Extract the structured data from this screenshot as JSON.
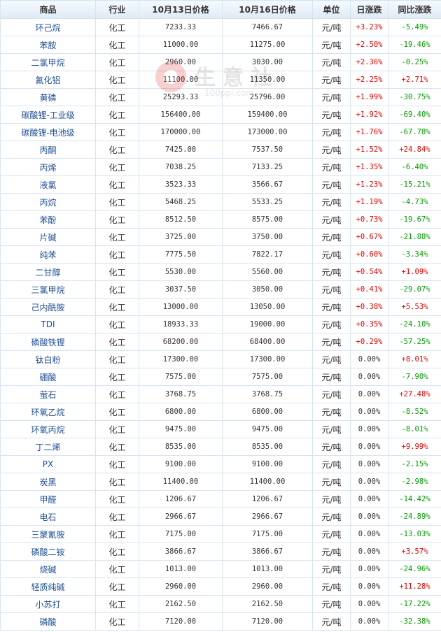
{
  "header": {
    "product": "商品",
    "industry": "行业",
    "price1": "10月13日价格",
    "price2": "10月16日价格",
    "unit": "单位",
    "daily": "日涨跌",
    "yoy": "同比涨跌"
  },
  "watermark": {
    "text": "生意社",
    "url": "100ppi.com"
  },
  "colors": {
    "up": "#e10000",
    "down": "#009a00",
    "link": "#1f4e96",
    "border": "#d6e4f2"
  },
  "rows": [
    {
      "name": "环己烷",
      "industry": "化工",
      "p1": "7233.33",
      "p2": "7466.67",
      "unit": "元/吨",
      "daily": "+3.23%",
      "yoy": "-5.49%"
    },
    {
      "name": "苯胺",
      "industry": "化工",
      "p1": "11000.00",
      "p2": "11275.00",
      "unit": "元/吨",
      "daily": "+2.50%",
      "yoy": "-19.46%"
    },
    {
      "name": "二氯甲烷",
      "industry": "化工",
      "p1": "2960.00",
      "p2": "3030.00",
      "unit": "元/吨",
      "daily": "+2.36%",
      "yoy": "-0.25%"
    },
    {
      "name": "氟化铝",
      "industry": "化工",
      "p1": "11100.00",
      "p2": "11350.00",
      "unit": "元/吨",
      "daily": "+2.25%",
      "yoy": "+2.71%"
    },
    {
      "name": "黄磷",
      "industry": "化工",
      "p1": "25293.33",
      "p2": "25796.00",
      "unit": "元/吨",
      "daily": "+1.99%",
      "yoy": "-30.75%"
    },
    {
      "name": "碳酸锂-工业级",
      "industry": "化工",
      "p1": "156400.00",
      "p2": "159400.00",
      "unit": "元/吨",
      "daily": "+1.92%",
      "yoy": "-69.40%"
    },
    {
      "name": "碳酸锂-电池级",
      "industry": "化工",
      "p1": "170000.00",
      "p2": "173000.00",
      "unit": "元/吨",
      "daily": "+1.76%",
      "yoy": "-67.78%"
    },
    {
      "name": "丙酮",
      "industry": "化工",
      "p1": "7425.00",
      "p2": "7537.50",
      "unit": "元/吨",
      "daily": "+1.52%",
      "yoy": "+24.84%"
    },
    {
      "name": "丙烯",
      "industry": "化工",
      "p1": "7038.25",
      "p2": "7133.25",
      "unit": "元/吨",
      "daily": "+1.35%",
      "yoy": "-6.40%"
    },
    {
      "name": "液氯",
      "industry": "化工",
      "p1": "3523.33",
      "p2": "3566.67",
      "unit": "元/吨",
      "daily": "+1.23%",
      "yoy": "-15.21%"
    },
    {
      "name": "丙烷",
      "industry": "化工",
      "p1": "5468.25",
      "p2": "5533.25",
      "unit": "元/吨",
      "daily": "+1.19%",
      "yoy": "-4.73%"
    },
    {
      "name": "苯酚",
      "industry": "化工",
      "p1": "8512.50",
      "p2": "8575.00",
      "unit": "元/吨",
      "daily": "+0.73%",
      "yoy": "-19.67%"
    },
    {
      "name": "片碱",
      "industry": "化工",
      "p1": "3725.00",
      "p2": "3750.00",
      "unit": "元/吨",
      "daily": "+0.67%",
      "yoy": "-21.88%"
    },
    {
      "name": "纯苯",
      "industry": "化工",
      "p1": "7775.50",
      "p2": "7822.17",
      "unit": "元/吨",
      "daily": "+0.60%",
      "yoy": "-3.34%"
    },
    {
      "name": "二甘醇",
      "industry": "化工",
      "p1": "5530.00",
      "p2": "5560.00",
      "unit": "元/吨",
      "daily": "+0.54%",
      "yoy": "+1.09%"
    },
    {
      "name": "三氯甲烷",
      "industry": "化工",
      "p1": "3037.50",
      "p2": "3050.00",
      "unit": "元/吨",
      "daily": "+0.41%",
      "yoy": "-29.07%"
    },
    {
      "name": "己内酰胺",
      "industry": "化工",
      "p1": "13000.00",
      "p2": "13050.00",
      "unit": "元/吨",
      "daily": "+0.38%",
      "yoy": "+5.53%"
    },
    {
      "name": "TDI",
      "industry": "化工",
      "p1": "18933.33",
      "p2": "19000.00",
      "unit": "元/吨",
      "daily": "+0.35%",
      "yoy": "-24.10%"
    },
    {
      "name": "磷酸铁锂",
      "industry": "化工",
      "p1": "68200.00",
      "p2": "68400.00",
      "unit": "元/吨",
      "daily": "+0.29%",
      "yoy": "-57.25%"
    },
    {
      "name": "钛白粉",
      "industry": "化工",
      "p1": "17300.00",
      "p2": "17300.00",
      "unit": "元/吨",
      "daily": "0.00%",
      "yoy": "+8.01%"
    },
    {
      "name": "硼酸",
      "industry": "化工",
      "p1": "7575.00",
      "p2": "7575.00",
      "unit": "元/吨",
      "daily": "0.00%",
      "yoy": "-7.90%"
    },
    {
      "name": "萤石",
      "industry": "化工",
      "p1": "3768.75",
      "p2": "3768.75",
      "unit": "元/吨",
      "daily": "0.00%",
      "yoy": "+27.48%"
    },
    {
      "name": "环氧乙烷",
      "industry": "化工",
      "p1": "6800.00",
      "p2": "6800.00",
      "unit": "元/吨",
      "daily": "0.00%",
      "yoy": "-8.52%"
    },
    {
      "name": "环氧丙烷",
      "industry": "化工",
      "p1": "9475.00",
      "p2": "9475.00",
      "unit": "元/吨",
      "daily": "0.00%",
      "yoy": "-8.01%"
    },
    {
      "name": "丁二烯",
      "industry": "化工",
      "p1": "8535.00",
      "p2": "8535.00",
      "unit": "元/吨",
      "daily": "0.00%",
      "yoy": "+9.99%"
    },
    {
      "name": "PX",
      "industry": "化工",
      "p1": "9100.00",
      "p2": "9100.00",
      "unit": "元/吨",
      "daily": "0.00%",
      "yoy": "-2.15%"
    },
    {
      "name": "炭黑",
      "industry": "化工",
      "p1": "11400.00",
      "p2": "11400.00",
      "unit": "元/吨",
      "daily": "0.00%",
      "yoy": "-2.98%"
    },
    {
      "name": "甲醛",
      "industry": "化工",
      "p1": "1206.67",
      "p2": "1206.67",
      "unit": "元/吨",
      "daily": "0.00%",
      "yoy": "-14.42%"
    },
    {
      "name": "电石",
      "industry": "化工",
      "p1": "2966.67",
      "p2": "2966.67",
      "unit": "元/吨",
      "daily": "0.00%",
      "yoy": "-24.89%"
    },
    {
      "name": "三聚氰胺",
      "industry": "化工",
      "p1": "7175.00",
      "p2": "7175.00",
      "unit": "元/吨",
      "daily": "0.00%",
      "yoy": "-13.03%"
    },
    {
      "name": "磷酸二铵",
      "industry": "化工",
      "p1": "3866.67",
      "p2": "3866.67",
      "unit": "元/吨",
      "daily": "0.00%",
      "yoy": "+3.57%"
    },
    {
      "name": "烧碱",
      "industry": "化工",
      "p1": "1013.00",
      "p2": "1013.00",
      "unit": "元/吨",
      "daily": "0.00%",
      "yoy": "-24.96%"
    },
    {
      "name": "轻质纯碱",
      "industry": "化工",
      "p1": "2960.00",
      "p2": "2960.00",
      "unit": "元/吨",
      "daily": "0.00%",
      "yoy": "+11.28%"
    },
    {
      "name": "小苏打",
      "industry": "化工",
      "p1": "2162.50",
      "p2": "2162.50",
      "unit": "元/吨",
      "daily": "0.00%",
      "yoy": "-17.22%"
    },
    {
      "name": "磷酸",
      "industry": "化工",
      "p1": "7120.00",
      "p2": "7120.00",
      "unit": "元/吨",
      "daily": "0.00%",
      "yoy": "-32.38%"
    }
  ]
}
